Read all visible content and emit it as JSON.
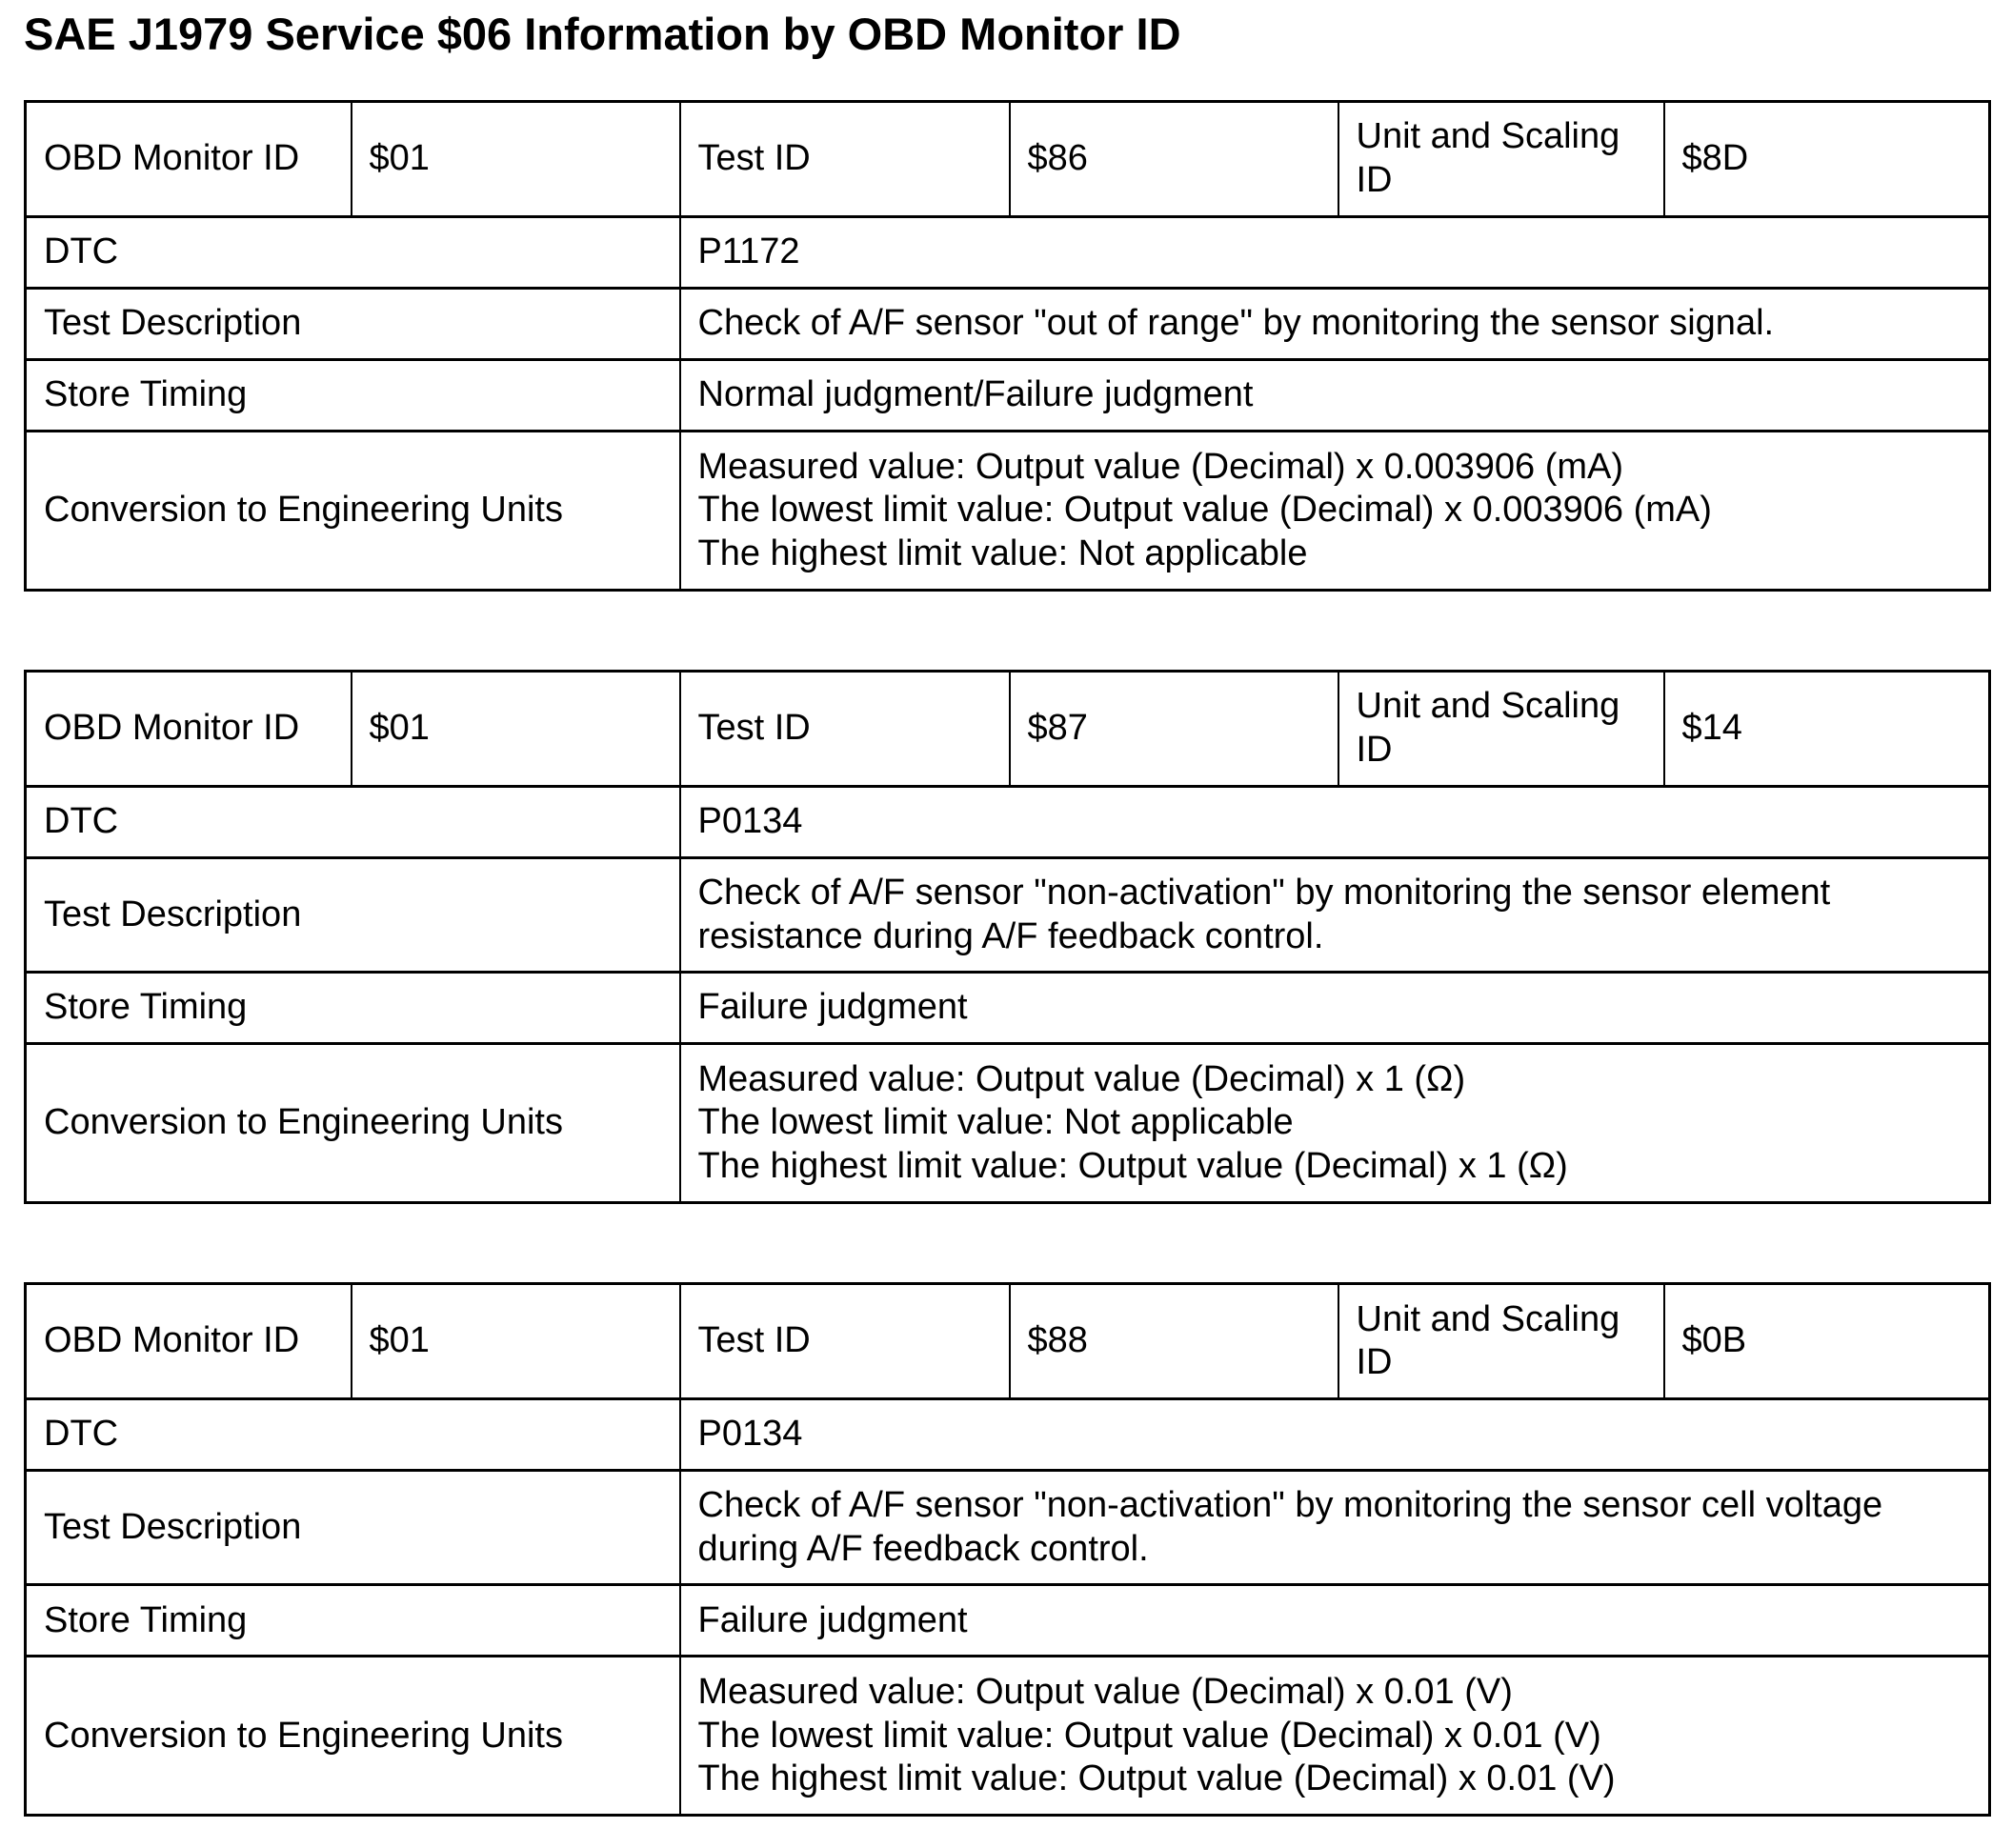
{
  "page_title": "SAE J1979 Service $06 Information by OBD Monitor ID",
  "labels": {
    "obd_monitor_id": "OBD Monitor ID",
    "test_id": "Test ID",
    "unit_scaling_id": "Unit and Scaling ID",
    "dtc": "DTC",
    "test_description": "Test Description",
    "store_timing": "Store Timing",
    "conversion": "Conversion to Engineering Units"
  },
  "tables": [
    {
      "obd_monitor_id": "$01",
      "test_id": "$86",
      "unit_scaling_id": "$8D",
      "dtc": "P1172",
      "test_description": "Check of A/F sensor \"out of range\" by monitoring the sensor signal.",
      "store_timing": "Normal judgment/Failure judgment",
      "conversion_lines": [
        "Measured value: Output value (Decimal) x 0.003906 (mA)",
        "The lowest limit value: Output value (Decimal) x 0.003906 (mA)",
        "The highest limit value: Not applicable"
      ]
    },
    {
      "obd_monitor_id": "$01",
      "test_id": "$87",
      "unit_scaling_id": "$14",
      "dtc": "P0134",
      "test_description": "Check of A/F sensor \"non-activation\" by monitoring the sensor element resistance during A/F feedback control.",
      "store_timing": "Failure judgment",
      "conversion_lines": [
        "Measured value: Output value (Decimal) x 1 (Ω)",
        "The lowest limit value: Not applicable",
        "The highest limit value: Output value (Decimal) x 1 (Ω)"
      ]
    },
    {
      "obd_monitor_id": "$01",
      "test_id": "$88",
      "unit_scaling_id": "$0B",
      "dtc": "P0134",
      "test_description": "Check of A/F sensor \"non-activation\" by monitoring the sensor cell voltage during A/F feedback control.",
      "store_timing": "Failure judgment",
      "conversion_lines": [
        "Measured value: Output value (Decimal) x 0.01 (V)",
        "The lowest limit value: Output value (Decimal) x 0.01 (V)",
        "The highest limit value: Output value (Decimal) x 0.01 (V)"
      ]
    }
  ]
}
